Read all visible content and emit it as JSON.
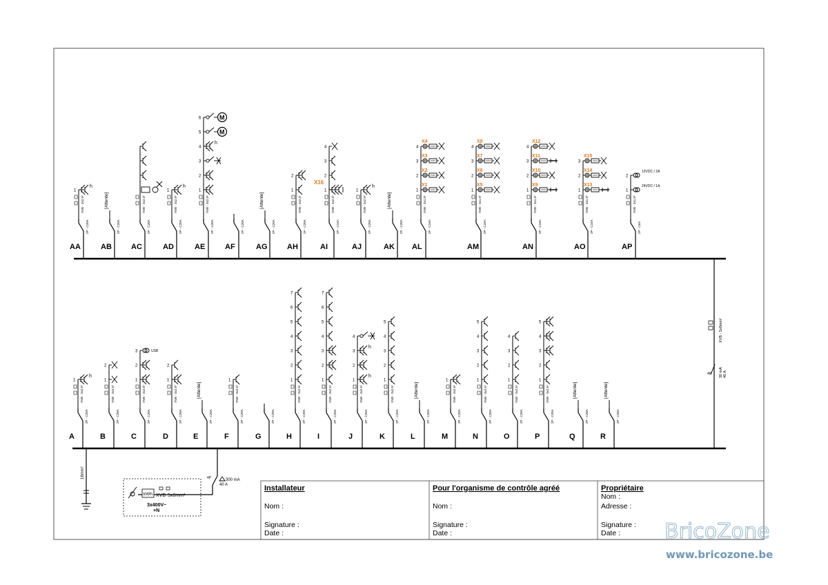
{
  "top_row": {
    "circuits": [
      {
        "id": "AA",
        "spec": "XVB - 3x2.5²",
        "breaker": "2P - C20A",
        "points": [
          {
            "n": "1",
            "sym": "socket-h"
          }
        ]
      },
      {
        "id": "AB",
        "spec": "",
        "breaker": "2P - C20A",
        "note": "[Attente]",
        "points": []
      },
      {
        "id": "AC",
        "spec": "XVB - 3x2.5²",
        "breaker": "2P - C20A",
        "points": [
          {
            "n": "",
            "sym": "appliance"
          },
          {
            "n": "",
            "sym": "socket"
          },
          {
            "n": "",
            "sym": "socket"
          },
          {
            "n": "",
            "sym": "socket"
          }
        ]
      },
      {
        "id": "AD",
        "spec": "XVB - 3x2.5²",
        "breaker": "2P - C20A",
        "points": [
          {
            "n": "1",
            "sym": "socket-h"
          }
        ]
      },
      {
        "id": "AE",
        "spec": "XVB - 3x2.5²",
        "breaker": "2P - C20A",
        "points": [
          {
            "n": "1",
            "sym": "socket2"
          },
          {
            "n": "2",
            "sym": "socket2"
          },
          {
            "n": "3",
            "sym": "switch-lamp"
          },
          {
            "n": "4",
            "sym": "socket-h"
          },
          {
            "n": "5",
            "sym": "motor"
          },
          {
            "n": "6",
            "sym": "motor"
          }
        ]
      },
      {
        "id": "AF",
        "spec": "",
        "breaker": "2P - C20A",
        "points": []
      },
      {
        "id": "AG",
        "spec": "",
        "breaker": "2P - C20A",
        "note": "[Attente]",
        "points": []
      },
      {
        "id": "AH",
        "spec": "XVB - 3x2.5²",
        "breaker": "2P - C20A",
        "points": [
          {
            "n": "1",
            "sym": "socket"
          },
          {
            "n": "2",
            "sym": "socket2"
          }
        ]
      },
      {
        "id": "AI",
        "spec": "XVB - 3x2.5²",
        "breaker": "2P - C16A",
        "tag": "X16",
        "points": [
          {
            "n": "1",
            "sym": "socket3"
          },
          {
            "n": "2",
            "sym": "socket"
          },
          {
            "n": "3",
            "sym": "socket"
          },
          {
            "n": "4",
            "sym": "lamp"
          }
        ]
      },
      {
        "id": "AJ",
        "spec": "XVB - 3x2.5²",
        "breaker": "2P - C20A",
        "points": [
          {
            "n": "1",
            "sym": "socket-h"
          }
        ]
      },
      {
        "id": "AK",
        "spec": "",
        "breaker": "2P - C20A",
        "note": "[Attente]",
        "points": []
      },
      {
        "id": "AL",
        "spec": "XVB - 3x1.5²",
        "breaker": "2P - C16A",
        "points": [
          {
            "n": "1",
            "sym": "dim",
            "tag": "X1"
          },
          {
            "n": "2",
            "sym": "dim",
            "tag": "X2"
          },
          {
            "n": "3",
            "sym": "dim",
            "tag": "X3"
          },
          {
            "n": "4",
            "sym": "dim",
            "tag": "X4"
          }
        ]
      },
      {
        "id": "AM",
        "spec": "XVB - 3x1.5²",
        "breaker": "2P - C16A",
        "points": [
          {
            "n": "1",
            "sym": "dim",
            "tag": "X5"
          },
          {
            "n": "2",
            "sym": "dim",
            "tag": "X6"
          },
          {
            "n": "3",
            "sym": "dim",
            "tag": "X7"
          },
          {
            "n": "4",
            "sym": "dim",
            "tag": "X8"
          }
        ]
      },
      {
        "id": "AN",
        "spec": "XVB - 3x1.5²",
        "breaker": "2P - C16A",
        "points": [
          {
            "n": "1",
            "sym": "dim-tube",
            "tag": "X9"
          },
          {
            "n": "2",
            "sym": "dim",
            "tag": "X10"
          },
          {
            "n": "3",
            "sym": "dim-tube",
            "tag": "X11"
          },
          {
            "n": "4",
            "sym": "dim",
            "tag": "X12"
          }
        ]
      },
      {
        "id": "AO",
        "spec": "XVB - 3x1.5²",
        "breaker": "2P - C16A",
        "points": [
          {
            "n": "1",
            "sym": "dim-tube",
            "tag": "X13"
          },
          {
            "n": "2",
            "sym": "dim",
            "tag": "X14"
          },
          {
            "n": "3",
            "sym": "dim",
            "tag": "X15"
          }
        ]
      },
      {
        "id": "AP",
        "spec": "XVB - 3x1.5²",
        "breaker": "2P - C6A",
        "points": [
          {
            "n": "1",
            "sym": "psu",
            "txt": "24VDC / 1A"
          },
          {
            "n": "2",
            "sym": "psu",
            "txt": "12VDC / 2A"
          }
        ]
      }
    ]
  },
  "bottom_row": {
    "circuits": [
      {
        "id": "A",
        "spec": "XVB - 3x2.5²",
        "breaker": "2P - C20A",
        "points": [
          {
            "n": "1",
            "sym": "socket-h"
          }
        ]
      },
      {
        "id": "B",
        "spec": "XVB - 3x2.5²",
        "breaker": "2P - C20A",
        "points": [
          {
            "n": "1",
            "sym": "lamp"
          },
          {
            "n": "2",
            "sym": "lamp"
          }
        ]
      },
      {
        "id": "C",
        "spec": "XVB - 3x2.5²",
        "breaker": "2P - C20A",
        "points": [
          {
            "n": "1",
            "sym": "socket2"
          },
          {
            "n": "2",
            "sym": "socket2"
          },
          {
            "n": "3",
            "sym": "usb",
            "txt": "USB"
          }
        ]
      },
      {
        "id": "D",
        "spec": "XVB - 3x2.5²",
        "breaker": "2P - C20A",
        "points": [
          {
            "n": "1",
            "sym": "socket2"
          },
          {
            "n": "2",
            "sym": "socket"
          }
        ]
      },
      {
        "id": "E",
        "spec": "",
        "breaker": "2P - C20A",
        "note": "[Attente]",
        "points": []
      },
      {
        "id": "F",
        "spec": "XVB - 3x2.5²",
        "breaker": "2P - C20A",
        "points": [
          {
            "n": "1",
            "sym": "socket"
          }
        ]
      },
      {
        "id": "G",
        "spec": "",
        "breaker": "2P - C20A",
        "points": []
      },
      {
        "id": "H",
        "spec": "XVB - 3x2.5²",
        "breaker": "2P - C20A",
        "points": [
          {
            "n": "1",
            "sym": "socket"
          },
          {
            "n": "2",
            "sym": "socket"
          },
          {
            "n": "3",
            "sym": "socket"
          },
          {
            "n": "4",
            "sym": "socket"
          },
          {
            "n": "5",
            "sym": "socket"
          },
          {
            "n": "6",
            "sym": "socket"
          },
          {
            "n": "7",
            "sym": "socket"
          }
        ]
      },
      {
        "id": "I",
        "spec": "XVB - 3x2.5²",
        "breaker": "2P - C20A",
        "points": [
          {
            "n": "1",
            "sym": "socket"
          },
          {
            "n": "2",
            "sym": "socket2"
          },
          {
            "n": "3",
            "sym": "socket2"
          },
          {
            "n": "4",
            "sym": "socket"
          },
          {
            "n": "5",
            "sym": "socket"
          },
          {
            "n": "6",
            "sym": "socket"
          },
          {
            "n": "7",
            "sym": "socket"
          }
        ]
      },
      {
        "id": "J",
        "spec": "XVB - 3x2.5²",
        "breaker": "2P - C20A",
        "points": [
          {
            "n": "1",
            "sym": "socket-h"
          },
          {
            "n": "2",
            "sym": "socket2"
          },
          {
            "n": "3",
            "sym": "socket-h"
          },
          {
            "n": "4",
            "sym": "switch-lamp"
          }
        ]
      },
      {
        "id": "K",
        "spec": "XVB - 3x2.5²",
        "breaker": "2P - C20A",
        "points": [
          {
            "n": "1",
            "sym": "socket"
          },
          {
            "n": "2",
            "sym": "socket"
          },
          {
            "n": "3",
            "sym": "socket"
          },
          {
            "n": "4",
            "sym": "socket"
          },
          {
            "n": "5",
            "sym": "socket"
          }
        ]
      },
      {
        "id": "L",
        "spec": "",
        "breaker": "2P - C20A",
        "note": "[Attente]",
        "points": []
      },
      {
        "id": "M",
        "spec": "XVB - 3x2.5²",
        "breaker": "2P - C20A",
        "points": [
          {
            "n": "1",
            "sym": "socket2"
          }
        ]
      },
      {
        "id": "N",
        "spec": "XVB - 3x2.5²",
        "breaker": "2P - C20A",
        "points": [
          {
            "n": "1",
            "sym": "socket"
          },
          {
            "n": "2",
            "sym": "socket"
          },
          {
            "n": "3",
            "sym": "socket"
          },
          {
            "n": "4",
            "sym": "socket"
          },
          {
            "n": "5",
            "sym": "socket"
          }
        ]
      },
      {
        "id": "O",
        "spec": "XVB - 3x2.5²",
        "breaker": "2P - C20A",
        "points": [
          {
            "n": "1",
            "sym": "socket"
          },
          {
            "n": "2",
            "sym": "socket"
          },
          {
            "n": "3",
            "sym": "socket"
          },
          {
            "n": "4",
            "sym": "socket"
          }
        ]
      },
      {
        "id": "P",
        "spec": "XVB - 3x2.5²",
        "breaker": "2P - C20A",
        "points": [
          {
            "n": "1",
            "sym": "socket"
          },
          {
            "n": "2",
            "sym": "socket"
          },
          {
            "n": "3",
            "sym": "socket2"
          },
          {
            "n": "4",
            "sym": "socket2"
          },
          {
            "n": "5",
            "sym": "socket2"
          }
        ]
      },
      {
        "id": "Q",
        "spec": "",
        "breaker": "2P - C20A",
        "note": "[Attente]",
        "points": []
      },
      {
        "id": "R",
        "spec": "",
        "breaker": "2P - C20A",
        "note": "[Attente]",
        "points": []
      }
    ]
  },
  "riser": {
    "spec": "XVB - 5x6mm²",
    "diff": "30 mA",
    "rating": "40 A"
  },
  "main": {
    "diff": "300 mA",
    "rating": "40 A",
    "earth": "16mm²",
    "meter": "kWh",
    "cable_type": "XVB",
    "cable_size": "5x6mm²",
    "supply_1": "3x400V~",
    "supply_2": "+N",
    "pole": "4P"
  },
  "title_block": {
    "installer": {
      "heading": "Installateur",
      "name": "Nom :",
      "signature": "Signature :",
      "date": "Date :"
    },
    "inspection": {
      "heading": "Pour l'organisme de contrôle agréé",
      "name": "Nom :",
      "signature": "Signature :",
      "date": "Date :"
    },
    "owner": {
      "heading": "Propriétaire",
      "name": "Nom :",
      "address": "Adresse :",
      "signature": "Signature :",
      "date": "Date :"
    }
  },
  "watermark": {
    "title": "BricoZone",
    "url": "www.bricozone.be"
  },
  "colors": {
    "line": "#000000",
    "tag": "#e07a1f",
    "watermark": "#9bbad0"
  }
}
